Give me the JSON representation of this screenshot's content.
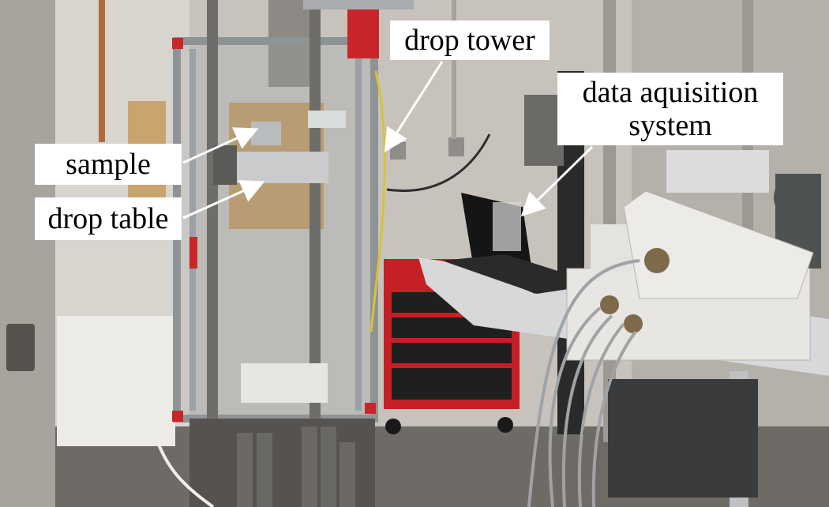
{
  "labels": {
    "sample": "sample",
    "drop_table": "drop table",
    "drop_tower": "drop tower",
    "daq_line1": "data aquisition",
    "daq_line2": "system"
  }
}
